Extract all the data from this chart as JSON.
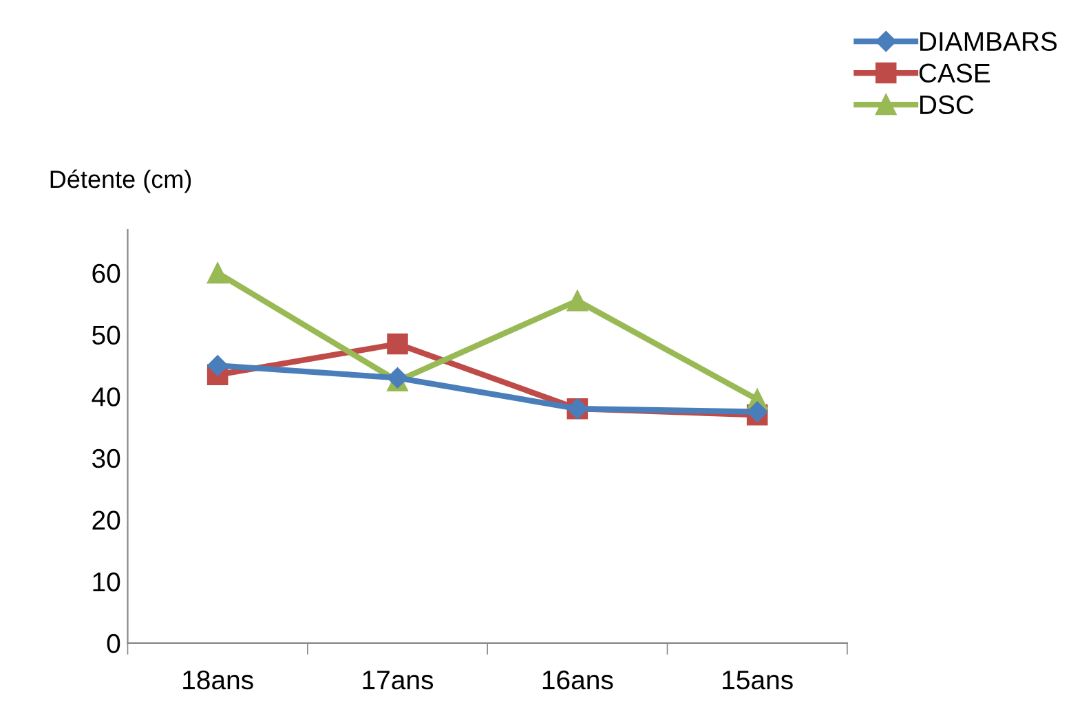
{
  "chart_data": {
    "type": "line",
    "ylabel": "Détente (cm)",
    "categories": [
      "18ans",
      "17ans",
      "16ans",
      "15ans"
    ],
    "ylim": [
      0,
      67
    ],
    "yticks": [
      0,
      10,
      20,
      30,
      40,
      50,
      60
    ],
    "grid": false,
    "legend": "top right",
    "series": [
      {
        "name": "DIAMBARS",
        "color": "#4a7ebb",
        "marker": "diamond",
        "values": [
          45,
          43,
          38,
          37.5
        ]
      },
      {
        "name": "CASE",
        "color": "#be4b48",
        "marker": "square",
        "values": [
          43.5,
          48.5,
          38,
          37
        ]
      },
      {
        "name": "DSC",
        "color": "#98b954",
        "marker": "triangle",
        "values": [
          60,
          42.5,
          55.5,
          39.5
        ]
      }
    ]
  }
}
